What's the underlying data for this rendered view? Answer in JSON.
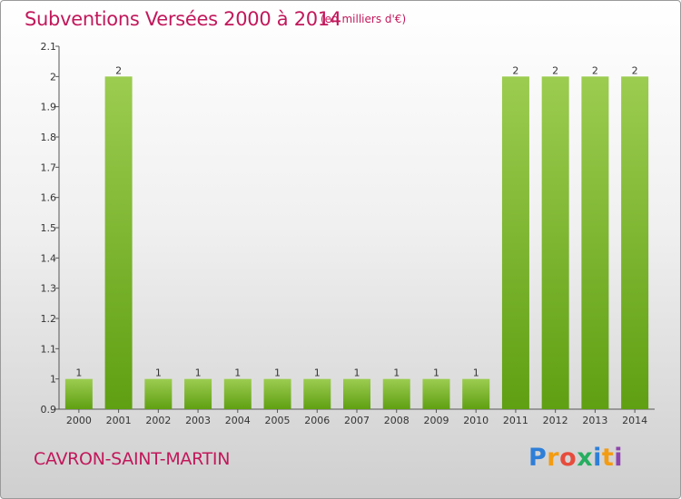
{
  "header": {
    "title": "Subventions Versées 2000 à 2014",
    "subtitle": "(en milliers d'€)"
  },
  "footer": {
    "commune": "CAVRON-SAINT-MARTIN",
    "logo_text": "Proxiti"
  },
  "colors": {
    "title": "#c2185b",
    "bar_light": "#9ccc50",
    "bar_dark": "#5f9f12",
    "axis": "#555555"
  },
  "chart_data": {
    "type": "bar",
    "title": "Subventions Versées 2000 à 2014",
    "subtitle": "(en milliers d'€)",
    "xlabel": "",
    "ylabel": "",
    "categories": [
      "2000",
      "2001",
      "2002",
      "2003",
      "2004",
      "2005",
      "2006",
      "2007",
      "2008",
      "2009",
      "2010",
      "2011",
      "2012",
      "2013",
      "2014"
    ],
    "values": [
      1,
      2,
      1,
      1,
      1,
      1,
      1,
      1,
      1,
      1,
      1,
      2,
      2,
      2,
      2
    ],
    "data_labels": [
      "1",
      "2",
      "1",
      "1",
      "1",
      "1",
      "1",
      "1",
      "1",
      "1",
      "1",
      "2",
      "2",
      "2",
      "2"
    ],
    "ylim": [
      0.9,
      2.1
    ],
    "yticks": [
      "0.9",
      "1",
      "1.1",
      "1.2",
      "1.3",
      "1.4",
      "1.5",
      "1.6",
      "1.7",
      "1.8",
      "1.9",
      "2",
      "2.1"
    ],
    "grid": false,
    "legend": "none"
  }
}
